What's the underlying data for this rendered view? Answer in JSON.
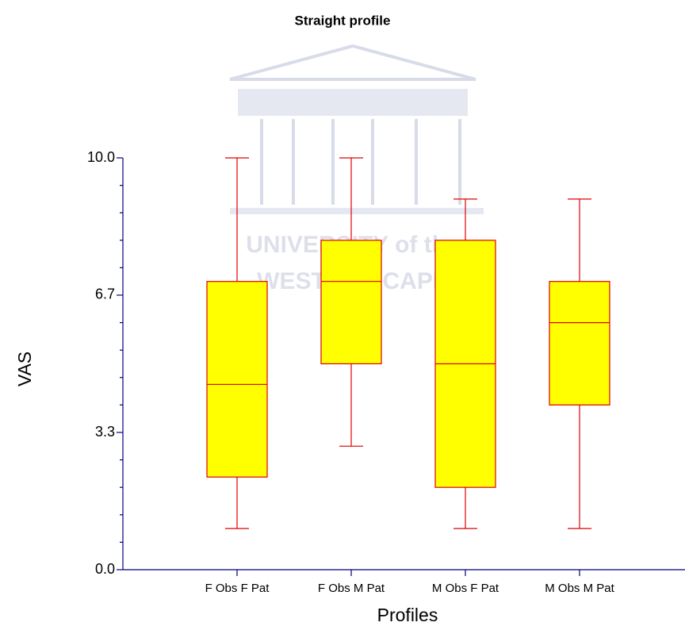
{
  "chart_data": {
    "type": "box",
    "title": "Straight profile",
    "x_label": "Profiles",
    "y_label": "VAS",
    "watermark": [
      "UNIVERSITY of the",
      "WESTERN CAPE"
    ],
    "categories": [
      "F Obs F Pat",
      "F Obs M Pat",
      "M Obs F Pat",
      "M Obs M Pat"
    ],
    "min": [
      1.0,
      3.0,
      1.0,
      1.0
    ],
    "q1": [
      2.25,
      5.0,
      2.0,
      4.0
    ],
    "median": [
      4.5,
      7.0,
      5.0,
      6.0
    ],
    "q3": [
      7.0,
      8.0,
      8.0,
      7.0
    ],
    "max": [
      10.0,
      10.0,
      9.0,
      9.0
    ],
    "fill": "#ffff00",
    "color": "#e00000",
    "axis_color": "#000080",
    "ylim": [
      0,
      10
    ],
    "yticks": [
      {
        "value": 0,
        "label": "0.0"
      },
      {
        "value": 3.333,
        "label": "3.3"
      },
      {
        "value": 6.667,
        "label": "6.7"
      },
      {
        "value": 10,
        "label": "10.0"
      }
    ],
    "minor_yticks": [
      0.667,
      1.333,
      2,
      2.667,
      4,
      4.667,
      5.333,
      6,
      7.333,
      8,
      8.667,
      9.333
    ]
  }
}
